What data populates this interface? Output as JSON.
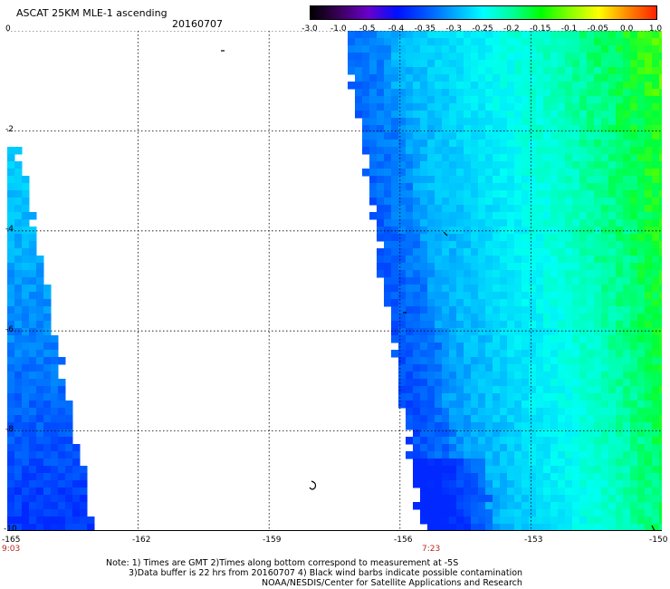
{
  "header": {
    "title": "ASCAT 25KM MLE-1 ascending",
    "date": "20160707"
  },
  "colorbar": {
    "labels": [
      "-3.0",
      "-1.0",
      "-0.5",
      "-0.4",
      "-0.35",
      "-0.3",
      "-0.25",
      "-0.2",
      "-0.15",
      "-0.1",
      "-0.05",
      "0.0",
      "1.0"
    ],
    "colors": [
      "#000000",
      "#3a005a",
      "#6a00cc",
      "#0010ff",
      "#0055ff",
      "#00aaff",
      "#00ffff",
      "#00ff99",
      "#00ff00",
      "#88ff00",
      "#ffff00",
      "#ff8800",
      "#ff2200"
    ]
  },
  "map": {
    "y_ticks": [
      "0",
      "-2",
      "-4",
      "-6",
      "-8",
      "-10"
    ],
    "x_ticks": [
      "-165",
      "-162",
      "-159",
      "-156",
      "-153",
      "-150"
    ],
    "times": [
      "9:03",
      "7:23"
    ],
    "lat_range": [
      -10,
      0
    ],
    "lon_range": [
      -165,
      -150
    ]
  },
  "footer": {
    "line1": "Note: 1) Times are GMT 2)Times along bottom correspond to measurement at -5S",
    "line2": "3)Data buffer is 22 hrs from 20160707 4) Black wind barbs indicate possible contamination",
    "line3": "NOAA/NESDIS/Center for Satellite Applications and Research"
  }
}
